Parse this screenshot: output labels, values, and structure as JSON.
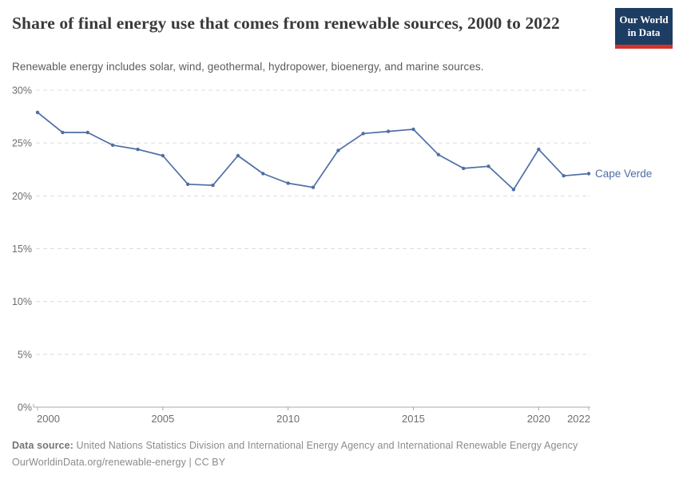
{
  "header": {
    "title": "Share of final energy use that comes from renewable sources, 2000 to 2022",
    "subtitle": "Renewable energy includes solar, wind, geothermal, hydropower, bioenergy, and marine sources.",
    "logo": {
      "line1": "Our World",
      "line2": "in Data",
      "bg_color": "#1d3d63",
      "accent_color": "#d2342b"
    }
  },
  "chart_data": {
    "type": "line",
    "title": "Share of final energy use that comes from renewable sources, 2000 to 2022",
    "xlabel": "",
    "ylabel": "",
    "xlim": [
      2000,
      2022
    ],
    "ylim": [
      0,
      30
    ],
    "x_ticks": [
      2000,
      2005,
      2010,
      2015,
      2020,
      2022
    ],
    "y_ticks": [
      0,
      5,
      10,
      15,
      20,
      25,
      30
    ],
    "y_tick_suffix": "%",
    "grid": "horizontal-dashed",
    "legend_position": "end-of-line-label",
    "x": [
      2000,
      2001,
      2002,
      2003,
      2004,
      2005,
      2006,
      2007,
      2008,
      2009,
      2010,
      2011,
      2012,
      2013,
      2014,
      2015,
      2016,
      2017,
      2018,
      2019,
      2020,
      2021,
      2022
    ],
    "series": [
      {
        "name": "Cape Verde",
        "color": "#4e6ea5",
        "values": [
          27.9,
          26.0,
          26.0,
          24.8,
          24.4,
          23.8,
          21.1,
          21.0,
          23.8,
          22.1,
          21.2,
          20.8,
          24.3,
          25.9,
          26.1,
          26.3,
          23.9,
          22.6,
          22.8,
          20.6,
          24.4,
          21.9,
          22.1
        ]
      }
    ],
    "colors": {
      "gridline": "#dcdcdc",
      "axis_line": "#a8a8a8",
      "tick_label": "#6e6e6e"
    }
  },
  "footer": {
    "source_label": "Data source:",
    "source_text": " United Nations Statistics Division and International Energy Agency and International Renewable Energy Agency",
    "link_text": "OurWorldinData.org/renewable-energy",
    "license_separator": " | ",
    "license_text": "CC BY"
  }
}
